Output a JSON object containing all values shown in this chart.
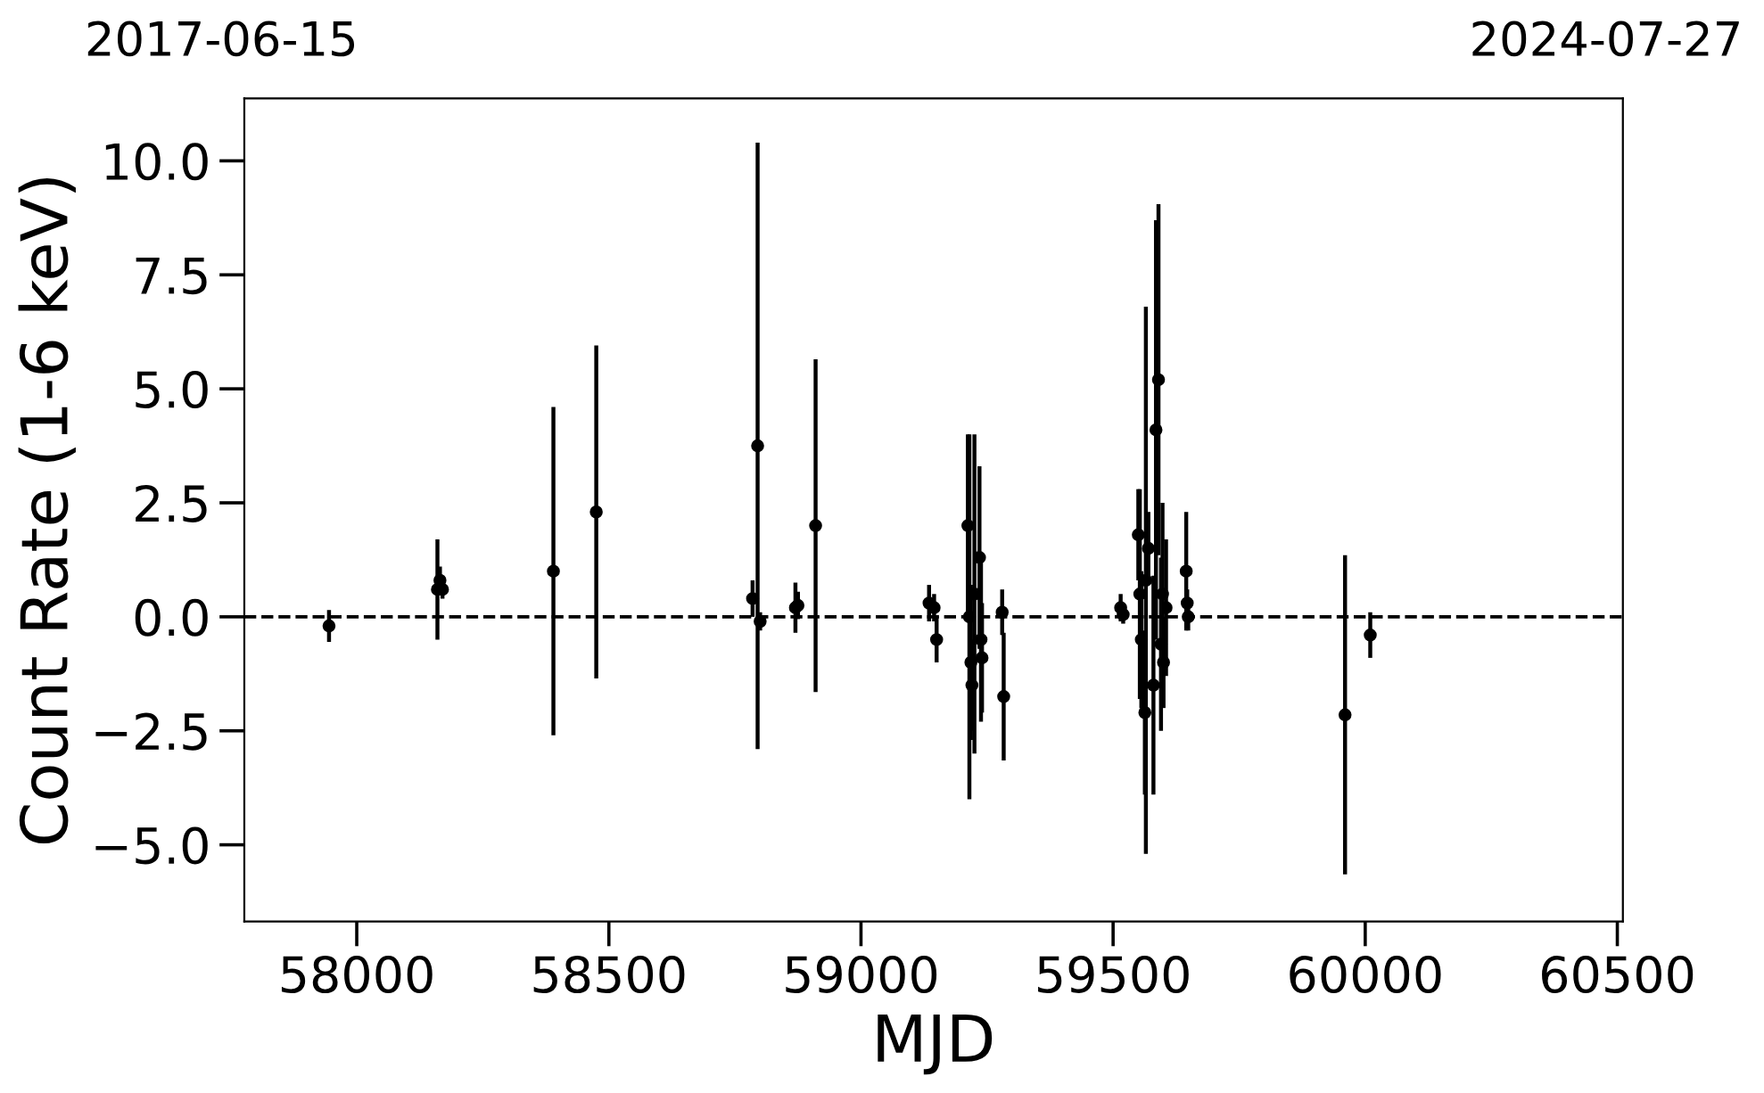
{
  "chart_data": {
    "type": "scatter",
    "xlabel": "MJD",
    "ylabel": "Count Rate (1-6 keV)",
    "annotations": [
      "2017-06-15",
      "2024-07-27"
    ],
    "color": "#000000",
    "marker": "circle",
    "grid": false,
    "legend": false,
    "x": [
      57945,
      58160,
      58165,
      58170,
      58390,
      58475,
      58785,
      58795,
      58800,
      58870,
      58875,
      58910,
      59135,
      59145,
      59150,
      59212,
      59215,
      59218,
      59220,
      59225,
      59235,
      59238,
      59240,
      59280,
      59283,
      59515,
      59520,
      59550,
      59553,
      59556,
      59563,
      59565,
      59570,
      59580,
      59585,
      59590,
      59595,
      59598,
      59600,
      59605,
      59645,
      59647,
      59649,
      59960,
      60010
    ],
    "values": [
      -0.2,
      0.6,
      0.8,
      0.6,
      1.0,
      2.3,
      0.4,
      3.75,
      -0.1,
      0.2,
      0.25,
      2.0,
      0.3,
      0.2,
      -0.5,
      2.0,
      0.0,
      -1.0,
      -1.5,
      0.5,
      1.3,
      -0.5,
      -0.9,
      0.1,
      -1.75,
      0.2,
      0.05,
      1.8,
      0.5,
      -0.5,
      -2.1,
      0.8,
      1.5,
      -1.5,
      4.1,
      5.2,
      -0.6,
      0.5,
      -1.0,
      0.2,
      1.0,
      0.3,
      0.0,
      -2.15,
      -0.4
    ],
    "errors": [
      0.35,
      1.1,
      0.3,
      0.2,
      3.6,
      3.65,
      0.4,
      6.65,
      0.2,
      0.55,
      0.3,
      3.65,
      0.4,
      0.3,
      0.5,
      2.0,
      4.0,
      1.7,
      1.0,
      3.5,
      2.0,
      1.8,
      1.2,
      0.5,
      1.4,
      0.3,
      0.2,
      1.0,
      2.3,
      1.5,
      1.8,
      6.0,
      0.8,
      2.4,
      4.6,
      3.85,
      1.9,
      2.0,
      1.0,
      1.5,
      1.3,
      0.3,
      0.3,
      3.5,
      0.5
    ],
    "ref_lines": [
      {
        "axis": "y",
        "value": 0,
        "color": "#000000",
        "line_style": "dashed"
      }
    ],
    "xlim": [
      57777,
      60511
    ],
    "ylim": [
      -6.68,
      11.37
    ],
    "xticks": [
      58000,
      58500,
      59000,
      59500,
      60000,
      60500
    ],
    "yticks": [
      {
        "value": -5,
        "label": "−5.0"
      },
      {
        "value": -2.5,
        "label": "−2.5"
      },
      {
        "value": 0,
        "label": "0.0"
      },
      {
        "value": 2.5,
        "label": "2.5"
      },
      {
        "value": 5,
        "label": "5.0"
      },
      {
        "value": 7.5,
        "label": "7.5"
      },
      {
        "value": 10,
        "label": "10.0"
      }
    ]
  }
}
